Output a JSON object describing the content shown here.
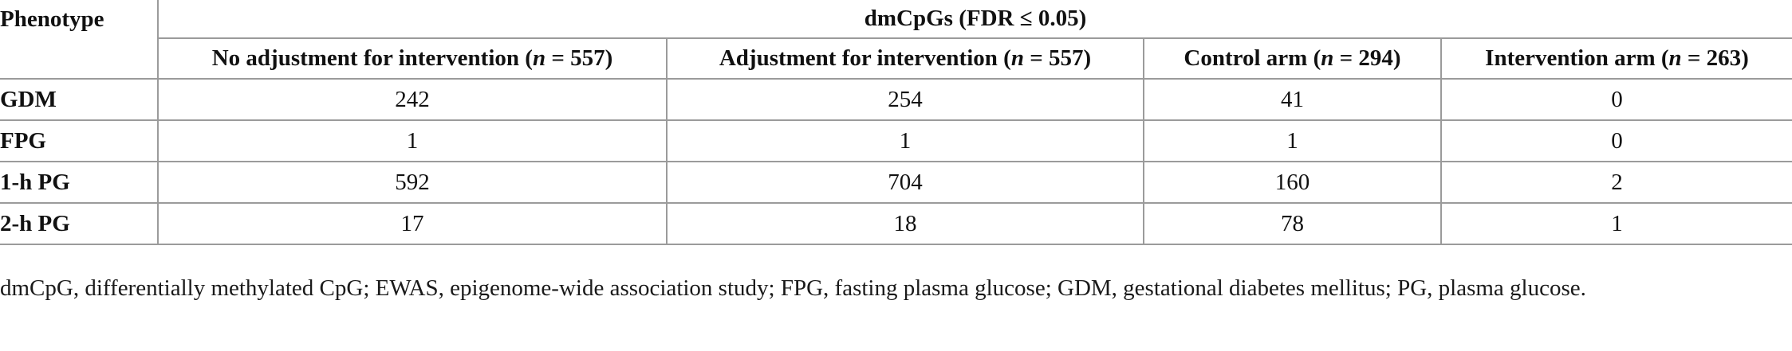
{
  "table": {
    "phenotype_header": "Phenotype",
    "group_header": "dmCpGs (FDR ≤ 0.05)",
    "columns": [
      {
        "prefix": "No adjustment for intervention (",
        "n_symbol": "n",
        "suffix": " = 557)"
      },
      {
        "prefix": "Adjustment for intervention (",
        "n_symbol": "n",
        "suffix": " = 557)"
      },
      {
        "prefix": "Control arm (",
        "n_symbol": "n",
        "suffix": " = 294)"
      },
      {
        "prefix": "Intervention arm (",
        "n_symbol": "n",
        "suffix": " = 263)"
      }
    ],
    "rows": [
      {
        "label": "GDM",
        "values": [
          "242",
          "254",
          "41",
          "0"
        ]
      },
      {
        "label": "FPG",
        "values": [
          "1",
          "1",
          "1",
          "0"
        ]
      },
      {
        "label": "1-h PG",
        "values": [
          "592",
          "704",
          "160",
          "2"
        ]
      },
      {
        "label": "2-h PG",
        "values": [
          "17",
          "18",
          "78",
          "1"
        ]
      }
    ]
  },
  "footnote": "dmCpG, differentially methylated CpG; EWAS, epigenome-wide association study; FPG, fasting plasma glucose; GDM, gestational diabetes mellitus; PG, plasma glucose."
}
